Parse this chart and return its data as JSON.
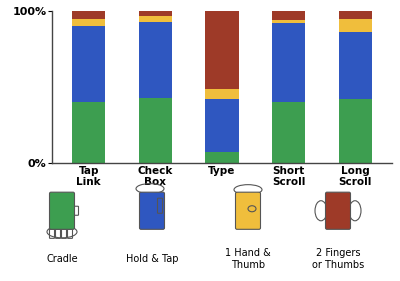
{
  "categories": [
    "Tap\nLink",
    "Check\nBox",
    "Type",
    "Short\nScroll",
    "Long\nScroll"
  ],
  "green": [
    0.4,
    0.43,
    0.07,
    0.4,
    0.42
  ],
  "blue": [
    0.5,
    0.5,
    0.35,
    0.52,
    0.44
  ],
  "orange": [
    0.05,
    0.04,
    0.07,
    0.02,
    0.09
  ],
  "brown": [
    0.05,
    0.03,
    0.51,
    0.06,
    0.05
  ],
  "colors": {
    "green": "#3d9e50",
    "blue": "#2f57c0",
    "orange": "#f0be3c",
    "brown": "#9e3a28"
  },
  "bar_width": 0.5,
  "image_labels": [
    "Cradle",
    "Hold & Tap",
    "1 Hand &\nThumb",
    "2 Fingers\nor Thumbs"
  ],
  "image_colors": [
    "#3d9e50",
    "#2f57c0",
    "#f0be3c",
    "#9e3a28"
  ]
}
